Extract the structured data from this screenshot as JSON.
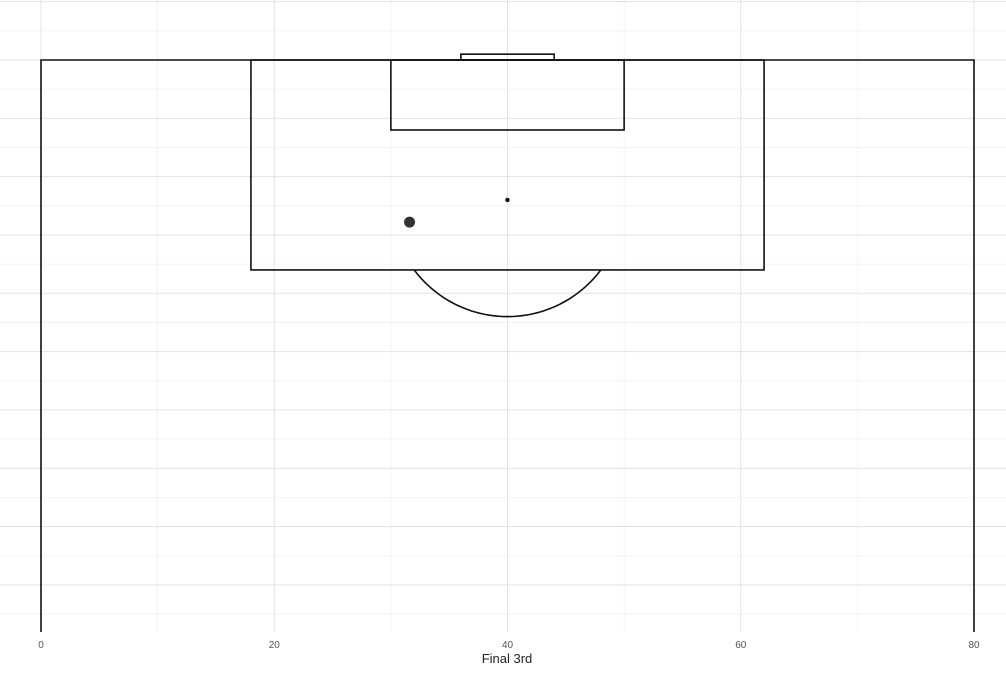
{
  "chart_data": {
    "type": "scatter",
    "title": "",
    "xlabel": "Final 3rd",
    "ylabel": "",
    "xlim": [
      0,
      80
    ],
    "ylim": [
      60,
      122
    ],
    "x_ticks": [
      0,
      20,
      40,
      60,
      80
    ],
    "x_tick_labels": [
      "0",
      "20",
      "40",
      "60",
      "80"
    ],
    "grid": true,
    "pitch": {
      "touchline_x": [
        0,
        80
      ],
      "goal_line_y": 120,
      "penalty_area": {
        "x": [
          18,
          62
        ],
        "y": [
          102,
          120
        ]
      },
      "six_yard_box": {
        "x": [
          30,
          50
        ],
        "y": [
          114,
          120
        ]
      },
      "goal": {
        "x": [
          36,
          44
        ],
        "y": [
          120,
          120.5
        ]
      },
      "penalty_spot": {
        "x": 40,
        "y": 108
      },
      "penalty_arc": {
        "center": [
          40,
          108
        ],
        "radius": 10
      }
    },
    "points": [
      {
        "x": 31.6,
        "y": 106.1
      }
    ],
    "colors": {
      "pitch_lines": "#111111",
      "point": "#333333",
      "grid": "#e3e3e3"
    }
  }
}
